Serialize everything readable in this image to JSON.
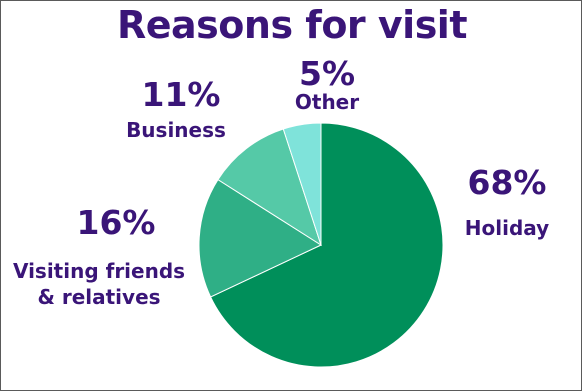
{
  "colors": {
    "text": "#3a1578",
    "slices": [
      "#008f5a",
      "#2faf86",
      "#55c9a7",
      "#7fe3da"
    ],
    "separator": "#ffffff"
  },
  "chart_data": {
    "type": "pie",
    "title": "Reasons for visit",
    "slices": [
      {
        "label": "Holiday",
        "value": 68,
        "value_label": "68%"
      },
      {
        "label": "Visiting friends & relatives",
        "value": 16,
        "value_label": "16%"
      },
      {
        "label": "Business",
        "value": 11,
        "value_label": "11%"
      },
      {
        "label": "Other",
        "value": 5,
        "value_label": "5%"
      }
    ],
    "start_angle_deg": 0,
    "direction": "clockwise"
  }
}
